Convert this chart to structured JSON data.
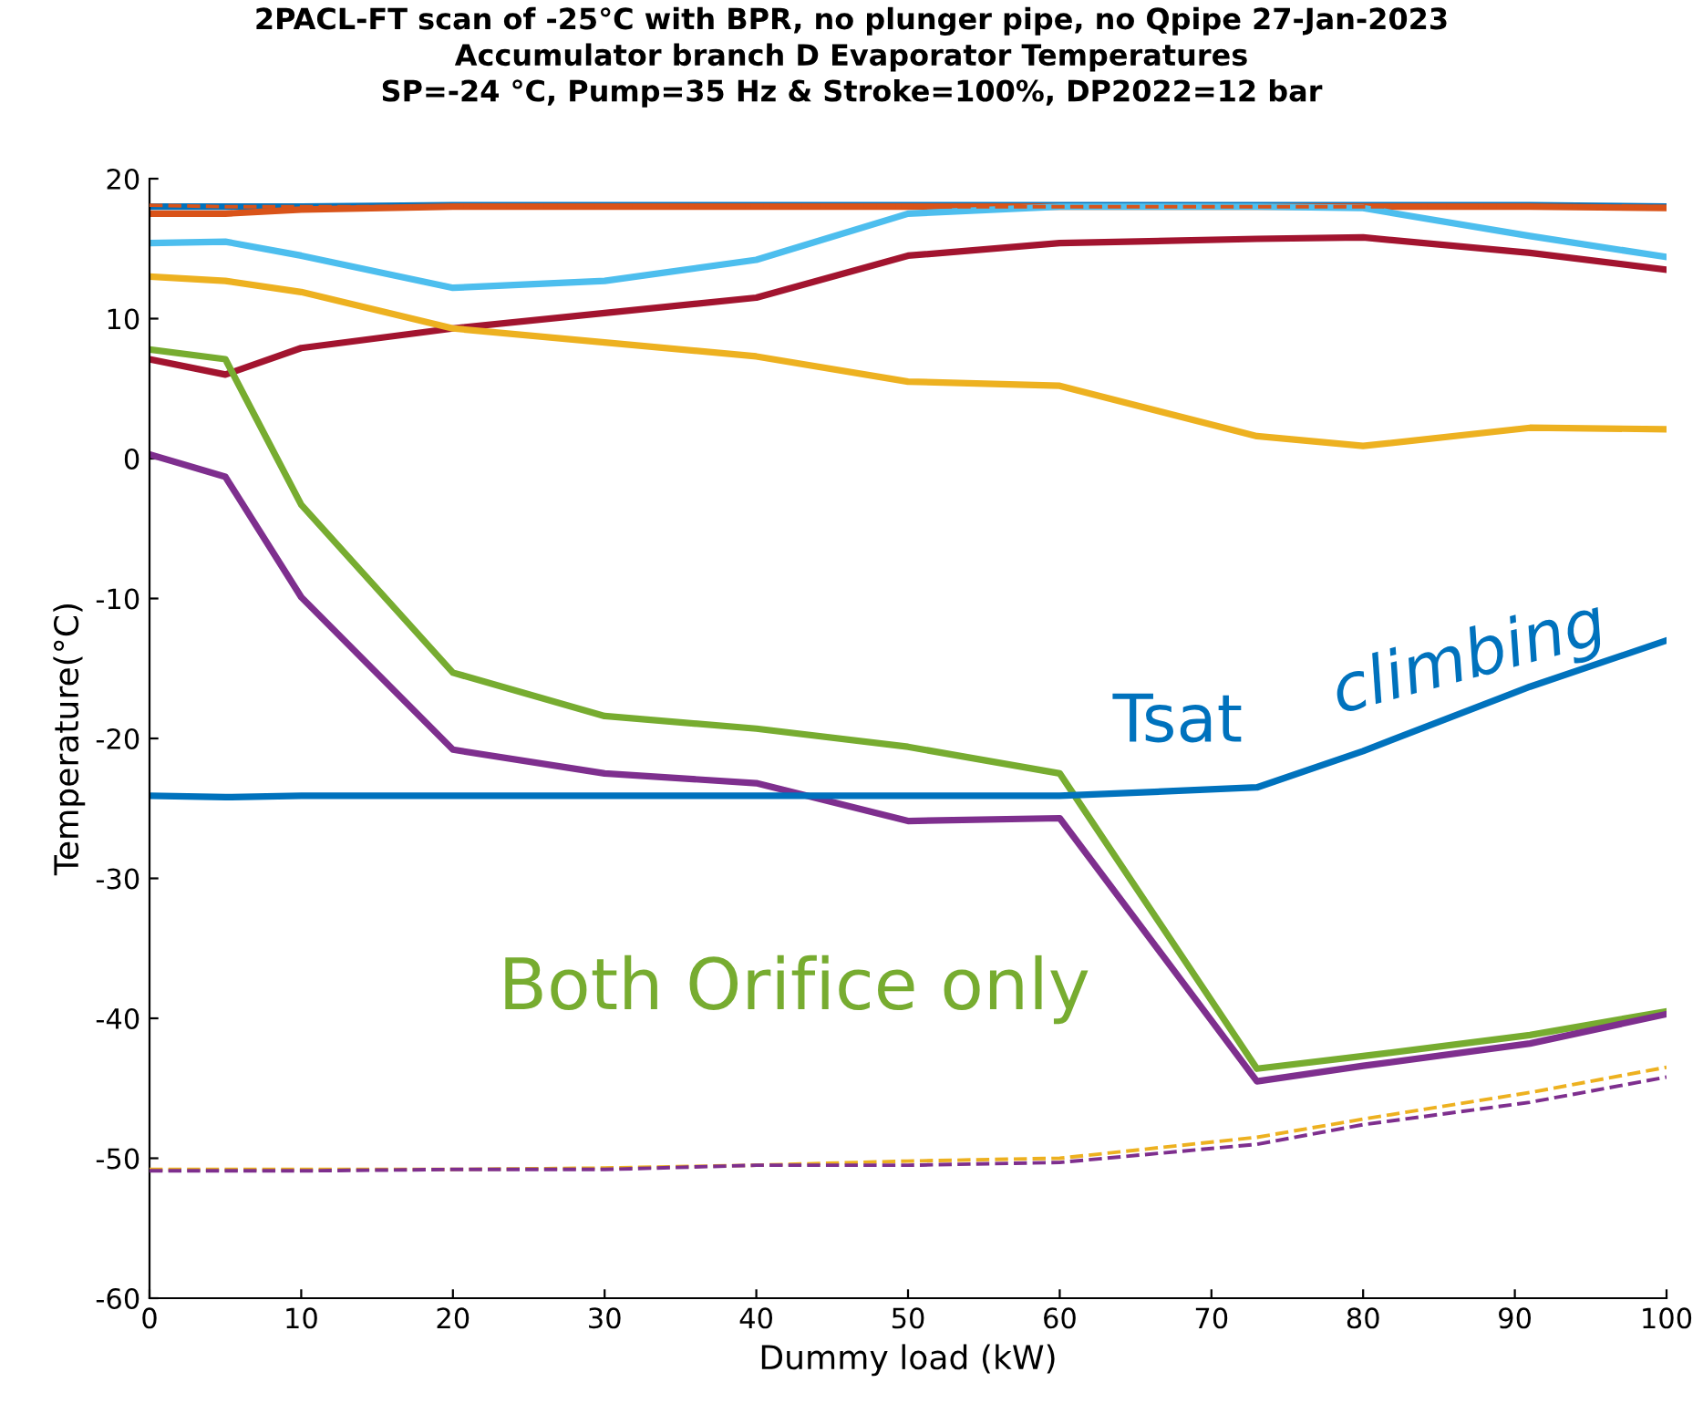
{
  "chart_data": {
    "type": "line",
    "title": "2PACL-FT scan of -25°C with BPR, no plunger pipe, no Qpipe 27-Jan-2023\nAccumulator branch D Evaporator Temperatures\nSP=-24 °C, Pump=35 Hz & Stroke=100%, DP2022=12 bar",
    "xlabel": "Dummy load (kW)",
    "ylabel": "Temperature(°C)",
    "x": [
      0,
      5,
      10,
      20,
      30,
      40,
      50,
      60,
      73,
      80,
      91,
      100
    ],
    "series": [
      {
        "color": "#0072bd",
        "line_style": "solid",
        "values": [
          18,
          18,
          18,
          18.1,
          18.1,
          18.1,
          18.1,
          18.1,
          18.1,
          18.1,
          18.1,
          18
        ]
      },
      {
        "color": "#d95319",
        "line_style": "solid",
        "values": [
          17.5,
          17.5,
          17.8,
          18,
          18,
          18,
          18,
          18,
          18,
          18,
          18,
          17.9
        ]
      },
      {
        "color": "#d95319",
        "line_style": "dashed",
        "values": [
          18.1,
          18,
          18,
          18,
          18,
          18,
          18,
          18,
          18,
          18,
          18,
          18
        ]
      },
      {
        "color": "#4dbeee",
        "line_style": "solid",
        "values": [
          15.4,
          15.5,
          14.5,
          12.2,
          12.7,
          14.2,
          17.5,
          18,
          18,
          17.9,
          15.9,
          14.4
        ]
      },
      {
        "color": "#a2142f",
        "line_style": "solid",
        "values": [
          7.1,
          6.0,
          7.9,
          9.3,
          10.4,
          11.5,
          14.5,
          15.4,
          15.7,
          15.8,
          14.7,
          13.5
        ]
      },
      {
        "color": "#edb120",
        "line_style": "solid",
        "values": [
          13,
          12.7,
          11.9,
          9.3,
          8.3,
          7.3,
          5.5,
          5.2,
          1.6,
          0.9,
          2.2,
          2.1
        ]
      },
      {
        "color": "#77ac30",
        "line_style": "solid",
        "values": [
          7.8,
          7.1,
          -3.3,
          -15.3,
          -18.4,
          -19.3,
          -20.6,
          -22.5,
          -43.6,
          -42.7,
          -41.2,
          -39.5
        ]
      },
      {
        "color": "#7e2f8e",
        "line_style": "solid",
        "values": [
          0.3,
          -1.3,
          -9.9,
          -20.8,
          -22.5,
          -23.2,
          -25.9,
          -25.7,
          -44.5,
          -43.4,
          -41.8,
          -39.7
        ]
      },
      {
        "color": "#0072bd",
        "line_style": "solid",
        "values": [
          -24.1,
          -24.2,
          -24.1,
          -24.1,
          -24.1,
          -24.1,
          -24.1,
          -24.1,
          -23.5,
          -20.9,
          -16.3,
          -13
        ]
      },
      {
        "color": "#edb120",
        "line_style": "dashed",
        "values": [
          -50.8,
          -50.8,
          -50.8,
          -50.8,
          -50.7,
          -50.5,
          -50.2,
          -50,
          -48.5,
          -47.2,
          -45.3,
          -43.5
        ]
      },
      {
        "color": "#7e2f8e",
        "line_style": "dashed",
        "values": [
          -50.9,
          -50.9,
          -50.9,
          -50.8,
          -50.8,
          -50.5,
          -50.5,
          -50.3,
          -49,
          -47.6,
          -46,
          -44.2
        ]
      }
    ],
    "annotations": [
      "Tsat",
      "climbing",
      "Both Orifice only"
    ],
    "xlim": [
      0,
      100
    ],
    "xticks": [
      0,
      10,
      20,
      30,
      40,
      50,
      60,
      70,
      80,
      90,
      100
    ],
    "ylim": [
      -60,
      20
    ],
    "yticks": [
      -60,
      -50,
      -40,
      -30,
      -20,
      -10,
      0,
      10,
      20
    ],
    "grid": false,
    "legend": false,
    "marker": "none"
  }
}
